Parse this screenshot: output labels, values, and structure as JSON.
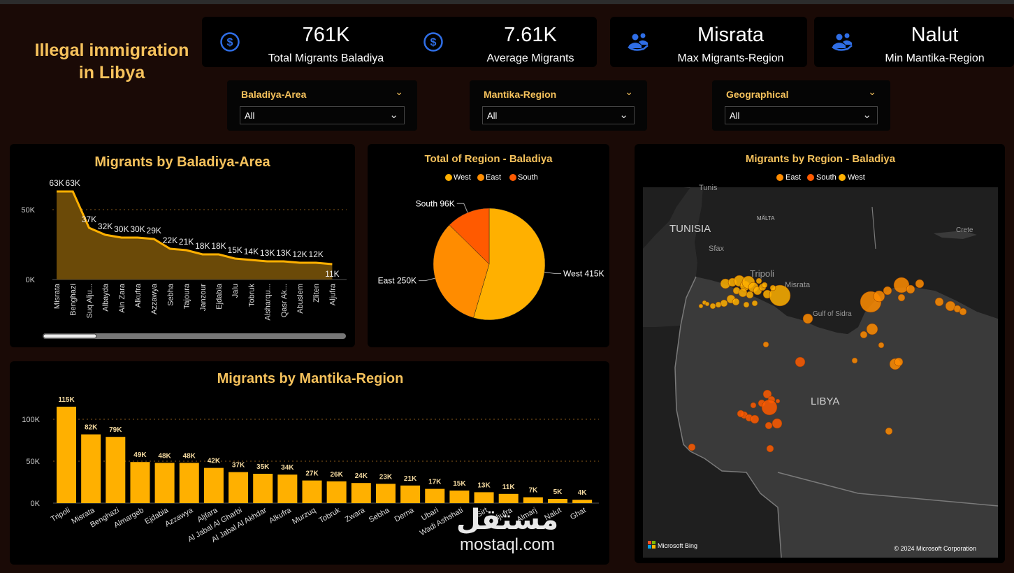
{
  "page": {
    "title_line1": "Illegal immigration",
    "title_line2": "in Libya"
  },
  "kpis": [
    {
      "value": "761K",
      "label": "Total Migrants Baladiya",
      "icon": "dollar-circle-icon"
    },
    {
      "value": "7.61K",
      "label": "Average Migrants",
      "icon": "dollar-circle-icon"
    },
    {
      "value": "Misrata",
      "label": "Max Migrants-Region",
      "icon": "people-icon"
    },
    {
      "value": "Nalut",
      "label": "Min Mantika-Region",
      "icon": "people-icon"
    }
  ],
  "slicers": [
    {
      "title": "Baladiya-Area",
      "value": "All"
    },
    {
      "title": "Mantika-Region",
      "value": "All"
    },
    {
      "title": "Geographical",
      "value": "All"
    }
  ],
  "colors": {
    "west": "#ffb000",
    "east": "#ff8c00",
    "south": "#ff5a00",
    "accent": "#f6c25c",
    "kpi_icon": "#2f6ee6"
  },
  "chart_data": [
    {
      "id": "baladiya",
      "type": "area",
      "title": "Migrants by Baladiya-Area",
      "categories": [
        "Misrata",
        "Benghazi",
        "Suq Alju...",
        "Albayda",
        "Ain Zara",
        "Alkufra",
        "Azzawya",
        "Sebha",
        "Tajoura",
        "Janzour",
        "Ejdabia",
        "Jalu",
        "Tobruk",
        "Alsharqu...",
        "Qasr Ak...",
        "Abuslem",
        "Zliten",
        "Aljufra"
      ],
      "values": [
        63000,
        63000,
        37000,
        32000,
        30000,
        30000,
        29000,
        22000,
        21000,
        18000,
        18000,
        15000,
        14000,
        13000,
        13000,
        12000,
        12000,
        11000
      ],
      "data_labels": [
        "63K",
        "63K",
        "37K",
        "32K",
        "30K",
        "30K",
        "29K",
        "22K",
        "21K",
        "18K",
        "18K",
        "15K",
        "14K",
        "13K",
        "13K",
        "12K",
        "12K",
        "11K"
      ],
      "y_ticks": [
        {
          "value": 0,
          "label": "0K"
        },
        {
          "value": 50000,
          "label": "50K"
        }
      ],
      "ylim": [
        0,
        75000
      ]
    },
    {
      "id": "region_pie",
      "type": "pie",
      "title": "Total of Region - Baladiya",
      "legend": [
        "West",
        "East",
        "South"
      ],
      "slices": [
        {
          "name": "West",
          "value": 415000,
          "label": "West 415K"
        },
        {
          "name": "East",
          "value": 250000,
          "label": "East 250K"
        },
        {
          "name": "South",
          "value": 96000,
          "label": "South 96K"
        }
      ]
    },
    {
      "id": "mantika",
      "type": "bar",
      "title": "Migrants by Mantika-Region",
      "categories": [
        "Tripoli",
        "Misrata",
        "Benghazi",
        "Almargeb",
        "Ejdabia",
        "Azzawya",
        "Aljfara",
        "Al Jabal Al Gharbi",
        "Al Jabal Al Akhdar",
        "Alkufra",
        "Murzuq",
        "Tobruk",
        "Zwara",
        "Sebha",
        "Derna",
        "Ubari",
        "Wadi Ashshati",
        "Sirt",
        "Aljufra",
        "Almarj",
        "Nalut",
        "Ghat"
      ],
      "values": [
        115000,
        82000,
        79000,
        49000,
        48000,
        48000,
        42000,
        37000,
        35000,
        34000,
        27000,
        26000,
        24000,
        23000,
        21000,
        17000,
        15000,
        13000,
        11000,
        7000,
        5000,
        4000
      ],
      "data_labels": [
        "115K",
        "82K",
        "79K",
        "49K",
        "48K",
        "48K",
        "42K",
        "37K",
        "35K",
        "34K",
        "27K",
        "26K",
        "24K",
        "23K",
        "21K",
        "17K",
        "15K",
        "13K",
        "11K",
        "7K",
        "5K",
        "4K"
      ],
      "y_ticks": [
        {
          "value": 0,
          "label": "0K"
        },
        {
          "value": 50000,
          "label": "50K"
        },
        {
          "value": 100000,
          "label": "100K"
        }
      ],
      "ylim": [
        0,
        125000
      ]
    },
    {
      "id": "region_map",
      "type": "scatter",
      "title": "Migrants by Region - Baladiya",
      "legend": [
        "East",
        "South",
        "West"
      ],
      "place_labels": [
        "TUNISIA",
        "MALTA",
        "Sfax",
        "Tripoli",
        "Misrata",
        "Gulf of Sidra",
        "Crete",
        "LIBYA",
        "Tunis"
      ],
      "credits": {
        "left": "Microsoft Bing",
        "right": "© 2024 Microsoft Corporation"
      }
    }
  ],
  "watermark": {
    "arabic": "مستقل",
    "latin": "mostaql.com"
  }
}
